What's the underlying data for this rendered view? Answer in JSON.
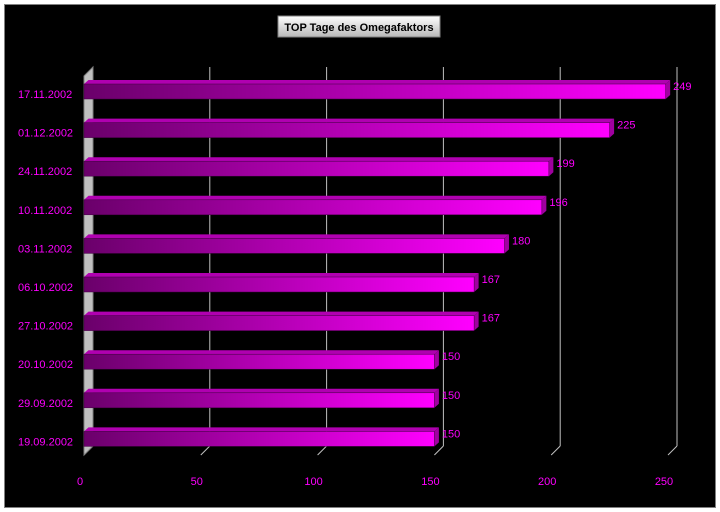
{
  "chart_data": {
    "type": "bar",
    "orientation": "horizontal",
    "title": "TOP Tage des Omegafaktors",
    "categories": [
      "17.11.2002",
      "01.12.2002",
      "24.11.2002",
      "10.11.2002",
      "03.11.2002",
      "06.10.2002",
      "27.10.2002",
      "20.10.2002",
      "29.09.2002",
      "19.09.2002"
    ],
    "values": [
      249,
      225,
      199,
      196,
      180,
      167,
      167,
      150,
      150,
      150
    ],
    "xlabel": "",
    "ylabel": "",
    "xlim": [
      0,
      250
    ],
    "x_ticks": [
      "0",
      "50",
      "100",
      "150",
      "200",
      "250"
    ],
    "grid": true,
    "style": "3d",
    "colors": {
      "background": "#000000",
      "bar_light": "#ff00ff",
      "bar_dark": "#6a006a",
      "text": "#ff00ff",
      "grid": "#c0c0c0",
      "wall": "#c0c0c0"
    }
  }
}
